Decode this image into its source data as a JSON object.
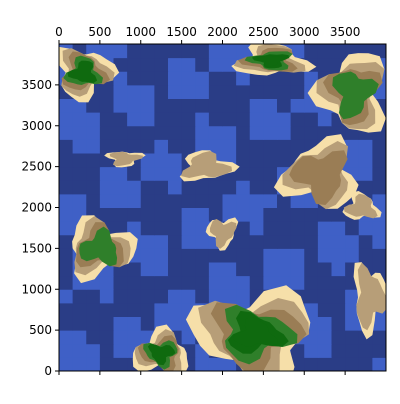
{
  "chart_data": {
    "type": "heatmap",
    "title": "",
    "xlabel": "",
    "ylabel": "",
    "x_axis_position": "top",
    "xlim": [
      0,
      4000
    ],
    "ylim": [
      0,
      4000
    ],
    "x_ticks": [
      0,
      500,
      1000,
      1500,
      2000,
      2500,
      3000,
      3500
    ],
    "y_ticks": [
      0,
      500,
      1000,
      1500,
      2000,
      2500,
      3000,
      3500
    ],
    "grid": false,
    "legend": "none",
    "colormap": {
      "levels": [
        {
          "name": "deep water",
          "color": "#2a3d86"
        },
        {
          "name": "shallow water",
          "color": "#3f60c6"
        },
        {
          "name": "beach",
          "color": "#f6dfa9"
        },
        {
          "name": "lowland",
          "color": "#b79e78"
        },
        {
          "name": "highland",
          "color": "#9a7d55"
        },
        {
          "name": "forest",
          "color": "#2f7f2a"
        },
        {
          "name": "peak",
          "color": "#0f6a0f"
        }
      ]
    },
    "islands": [
      {
        "id": "top-left",
        "cx": 300,
        "cy": 3650,
        "rx": 420,
        "ry": 380,
        "level": 5
      },
      {
        "id": "top-center",
        "cx": 2600,
        "cy": 3800,
        "rx": 520,
        "ry": 250,
        "level": 6
      },
      {
        "id": "top-right",
        "cx": 3600,
        "cy": 3400,
        "rx": 500,
        "ry": 600,
        "level": 4
      },
      {
        "id": "mid-left-1",
        "cx": 800,
        "cy": 2600,
        "rx": 250,
        "ry": 120,
        "level": 2
      },
      {
        "id": "mid-center",
        "cx": 1800,
        "cy": 2500,
        "rx": 380,
        "ry": 220,
        "level": 2
      },
      {
        "id": "mid-right",
        "cx": 3200,
        "cy": 2400,
        "rx": 550,
        "ry": 500,
        "level": 3
      },
      {
        "id": "center-small",
        "cx": 2000,
        "cy": 1700,
        "rx": 220,
        "ry": 220,
        "level": 2
      },
      {
        "id": "left-middle",
        "cx": 500,
        "cy": 1500,
        "rx": 500,
        "ry": 420,
        "level": 4
      },
      {
        "id": "bottom-left",
        "cx": 1250,
        "cy": 220,
        "rx": 420,
        "ry": 320,
        "level": 6
      },
      {
        "id": "bottom-center",
        "cx": 2400,
        "cy": 450,
        "rx": 900,
        "ry": 650,
        "level": 6
      },
      {
        "id": "bottom-right",
        "cx": 3800,
        "cy": 900,
        "rx": 250,
        "ry": 500,
        "level": 2
      },
      {
        "id": "right-middle",
        "cx": 3700,
        "cy": 2000,
        "rx": 250,
        "ry": 200,
        "level": 2
      }
    ]
  }
}
